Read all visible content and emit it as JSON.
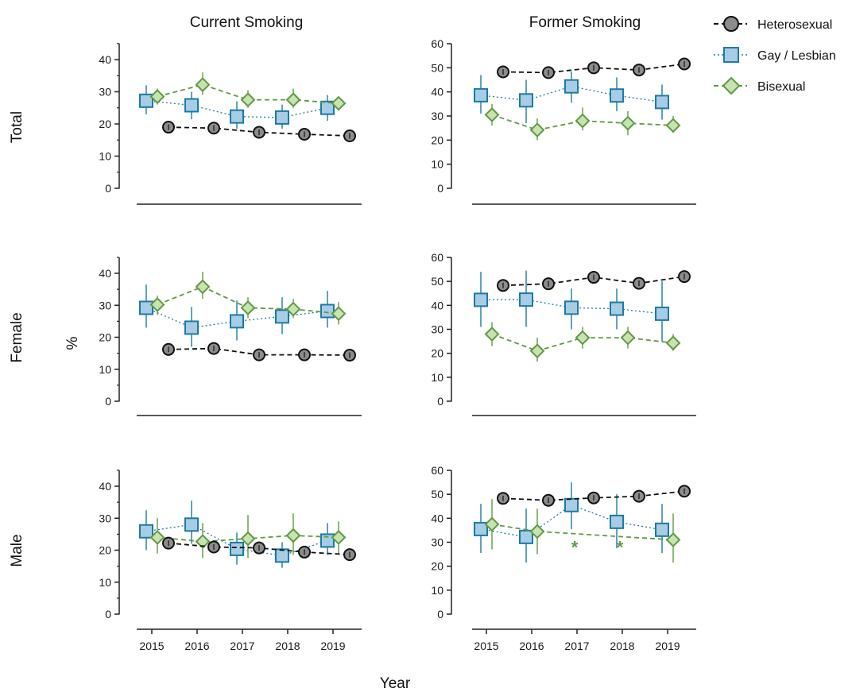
{
  "figure": {
    "col_titles": [
      "Current Smoking",
      "Former Smoking"
    ],
    "row_labels": [
      "Total",
      "Female",
      "Male"
    ],
    "ylabel": "%",
    "xlabel": "Year"
  },
  "legend": {
    "placement": "top-right",
    "items": [
      {
        "label": "Heterosexual",
        "series": "Heterosexual"
      },
      {
        "label": "Gay / Lesbian",
        "series": "Gay / Lesbian"
      },
      {
        "label": "Bisexual",
        "series": "Bisexual"
      }
    ]
  },
  "colors": {
    "Heterosexual": {
      "fill": "#8c8c8c",
      "stroke": "#111111",
      "line": "#111111"
    },
    "Gay / Lesbian": {
      "fill": "#a6cde3",
      "stroke": "#1c7aa6",
      "line": "#1c7aa6"
    },
    "Bisexual": {
      "fill": "#c7e3b0",
      "stroke": "#5f9a44",
      "line": "#5f9a44"
    }
  },
  "chart_data": [
    {
      "type": "line",
      "row": "Total",
      "col": "Current Smoking",
      "x": [
        2015,
        2016,
        2017,
        2018,
        2019
      ],
      "ylim": [
        0,
        45
      ],
      "yticks": [
        0,
        10,
        20,
        30,
        40
      ],
      "series": [
        {
          "name": "Heterosexual",
          "values": [
            19,
            18.7,
            17.4,
            16.8,
            16.3
          ],
          "ci_low": [
            19,
            18.7,
            17.4,
            16.8,
            16.3
          ],
          "ci_high": [
            19,
            18.7,
            17.4,
            16.8,
            16.3
          ]
        },
        {
          "name": "Gay / Lesbian",
          "values": [
            27.2,
            25.8,
            22.3,
            22,
            25
          ],
          "ci_low": [
            23,
            21.5,
            18.5,
            18.5,
            21
          ],
          "ci_high": [
            32,
            30,
            27,
            26,
            29
          ]
        },
        {
          "name": "Bisexual",
          "values": [
            28.5,
            32.2,
            27.5,
            27.5,
            26.4
          ],
          "ci_low": [
            26,
            29,
            25,
            25,
            25
          ],
          "ci_high": [
            31,
            36,
            30.5,
            31,
            28.5
          ]
        }
      ],
      "annotations": []
    },
    {
      "type": "line",
      "row": "Total",
      "col": "Former Smoking",
      "x": [
        2015,
        2016,
        2017,
        2018,
        2019
      ],
      "ylim": [
        0,
        60
      ],
      "yticks": [
        0,
        10,
        20,
        30,
        40,
        50,
        60
      ],
      "series": [
        {
          "name": "Heterosexual",
          "values": [
            48.3,
            48,
            50,
            49.1,
            51.6
          ],
          "ci_low": [
            48.3,
            48,
            50,
            49.1,
            51.6
          ],
          "ci_high": [
            48.3,
            48,
            50,
            49.1,
            51.6
          ]
        },
        {
          "name": "Gay / Lesbian",
          "values": [
            38.6,
            36.5,
            42.3,
            38.5,
            35.8
          ],
          "ci_low": [
            31,
            27,
            35.5,
            32,
            28.5
          ],
          "ci_high": [
            47,
            45,
            48.5,
            46,
            43
          ]
        },
        {
          "name": "Bisexual",
          "values": [
            30.5,
            24.2,
            28,
            27,
            26.1
          ],
          "ci_low": [
            26,
            20,
            24,
            22,
            23
          ],
          "ci_high": [
            35,
            29,
            33.5,
            32,
            30
          ]
        }
      ],
      "annotations": []
    },
    {
      "type": "line",
      "row": "Female",
      "col": "Current Smoking",
      "x": [
        2015,
        2016,
        2017,
        2018,
        2019
      ],
      "ylim": [
        0,
        45
      ],
      "yticks": [
        0,
        10,
        20,
        30,
        40
      ],
      "series": [
        {
          "name": "Heterosexual",
          "values": [
            16.2,
            16.5,
            14.5,
            14.5,
            14.4
          ],
          "ci_low": [
            16.2,
            16.5,
            14.5,
            14.5,
            14.4
          ],
          "ci_high": [
            16.2,
            16.5,
            14.5,
            14.5,
            14.4
          ]
        },
        {
          "name": "Gay / Lesbian",
          "values": [
            29.2,
            23,
            25,
            26.5,
            28.2
          ],
          "ci_low": [
            23,
            17,
            19,
            21,
            23
          ],
          "ci_high": [
            36.5,
            29.5,
            31.5,
            32.5,
            34.5
          ]
        },
        {
          "name": "Bisexual",
          "values": [
            30.2,
            35.8,
            29.2,
            28.8,
            27.4
          ],
          "ci_low": [
            27,
            32,
            26,
            26,
            24
          ],
          "ci_high": [
            33,
            40.5,
            32.5,
            32,
            31
          ]
        }
      ],
      "annotations": []
    },
    {
      "type": "line",
      "row": "Female",
      "col": "Former Smoking",
      "x": [
        2015,
        2016,
        2017,
        2018,
        2019
      ],
      "ylim": [
        0,
        60
      ],
      "yticks": [
        0,
        10,
        20,
        30,
        40,
        50,
        60
      ],
      "series": [
        {
          "name": "Heterosexual",
          "values": [
            48.3,
            49,
            51.7,
            49.2,
            52
          ],
          "ci_low": [
            48.3,
            49,
            51.7,
            49.2,
            52
          ],
          "ci_high": [
            48.3,
            49,
            51.7,
            49.2,
            52
          ]
        },
        {
          "name": "Gay / Lesbian",
          "values": [
            42.3,
            42.4,
            39,
            38.6,
            36.5
          ],
          "ci_low": [
            31,
            31,
            30,
            30,
            25
          ],
          "ci_high": [
            54,
            54.5,
            47,
            47,
            50
          ]
        },
        {
          "name": "Bisexual",
          "values": [
            28,
            21,
            26.5,
            26.5,
            24.3
          ],
          "ci_low": [
            23,
            16.5,
            22,
            22,
            21
          ],
          "ci_high": [
            33,
            26.5,
            31,
            31,
            28
          ]
        }
      ],
      "annotations": []
    },
    {
      "type": "line",
      "row": "Male",
      "col": "Current Smoking",
      "x": [
        2015,
        2016,
        2017,
        2018,
        2019
      ],
      "ylim": [
        0,
        45
      ],
      "yticks": [
        0,
        10,
        20,
        30,
        40
      ],
      "series": [
        {
          "name": "Heterosexual",
          "values": [
            22.2,
            21,
            20.7,
            19.4,
            18.6
          ],
          "ci_low": [
            22.2,
            21,
            20.7,
            19.4,
            18.6
          ],
          "ci_high": [
            22.2,
            21,
            20.7,
            19.4,
            18.6
          ]
        },
        {
          "name": "Gay / Lesbian",
          "values": [
            25.9,
            28,
            20.4,
            18.3,
            23
          ],
          "ci_low": [
            20,
            22,
            15.5,
            14.5,
            18.5
          ],
          "ci_high": [
            32.5,
            35.5,
            25.5,
            22.5,
            28.5
          ]
        },
        {
          "name": "Bisexual",
          "values": [
            24,
            22.7,
            23.6,
            24.6,
            24
          ],
          "ci_low": [
            19,
            17.5,
            17.5,
            18.5,
            19
          ],
          "ci_high": [
            30,
            28.5,
            31,
            31.5,
            29
          ]
        }
      ],
      "annotations": []
    },
    {
      "type": "line",
      "row": "Male",
      "col": "Former Smoking",
      "x": [
        2015,
        2016,
        2017,
        2018,
        2019
      ],
      "ylim": [
        0,
        60
      ],
      "yticks": [
        0,
        10,
        20,
        30,
        40,
        50,
        60
      ],
      "series": [
        {
          "name": "Heterosexual",
          "values": [
            48.3,
            47.5,
            48.5,
            49.2,
            51.3
          ],
          "ci_low": [
            48.3,
            47.5,
            48.5,
            49.2,
            51.3
          ],
          "ci_high": [
            48.3,
            47.5,
            48.5,
            49.2,
            51.3
          ]
        },
        {
          "name": "Gay / Lesbian",
          "values": [
            35.5,
            32.2,
            45.5,
            38.5,
            35.2
          ],
          "ci_low": [
            25.5,
            21.5,
            35.5,
            27.5,
            25.5
          ],
          "ci_high": [
            46,
            44,
            55,
            50,
            46
          ]
        },
        {
          "name": "Bisexual",
          "values": [
            37.5,
            34.5,
            null,
            null,
            31
          ],
          "ci_low": [
            27,
            25,
            null,
            null,
            21.5
          ],
          "ci_high": [
            48,
            44,
            null,
            null,
            42
          ]
        }
      ],
      "annotations": [
        {
          "text": "*",
          "x": 2017,
          "y": 28,
          "series": "Bisexual"
        },
        {
          "text": "*",
          "x": 2018,
          "y": 28,
          "series": "Bisexual"
        }
      ]
    }
  ]
}
